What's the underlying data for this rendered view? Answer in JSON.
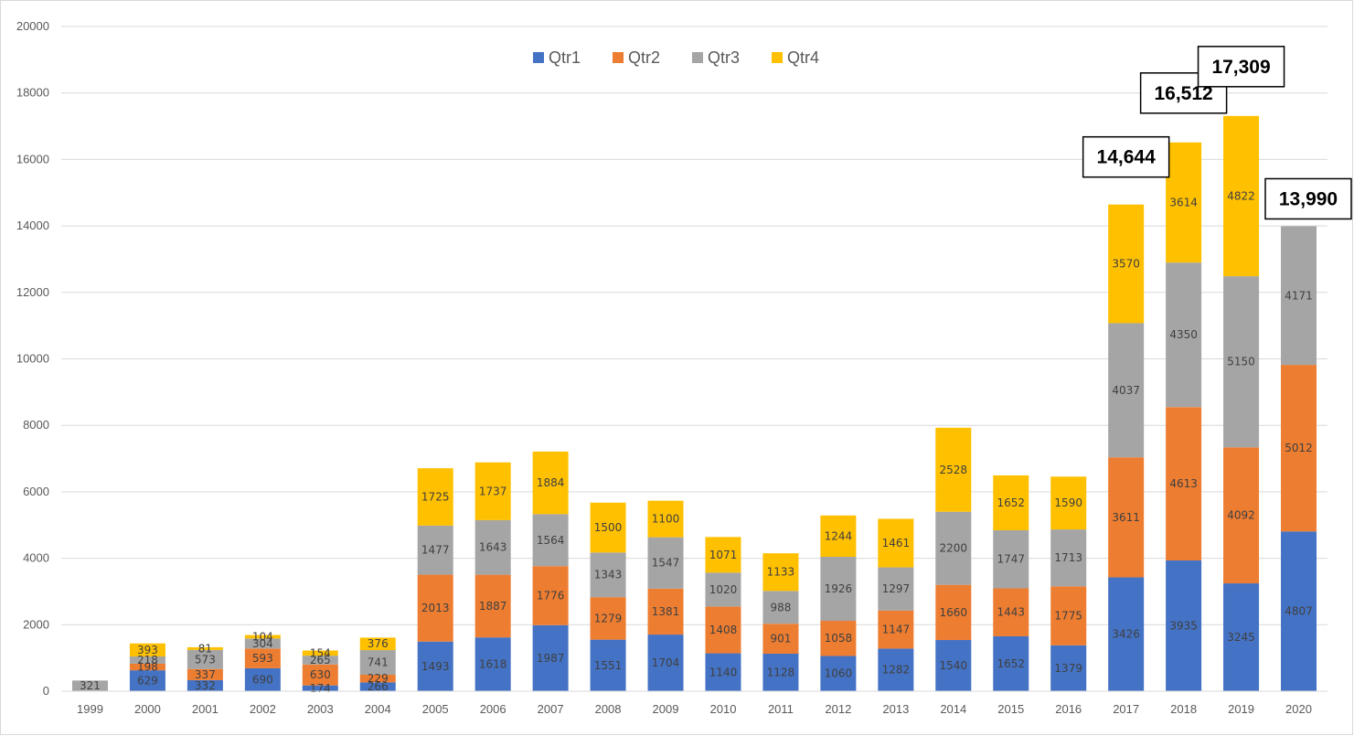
{
  "chart_data": {
    "type": "bar",
    "stacked": true,
    "title": "",
    "xlabel": "",
    "ylabel": "",
    "ylim": [
      0,
      20000
    ],
    "y_ticks": [
      "0",
      "2000",
      "4000",
      "6000",
      "8000",
      "10000",
      "12000",
      "14000",
      "16000",
      "18000",
      "20000"
    ],
    "grid": "horizontal",
    "legend_position": "top-center",
    "categories": [
      "1999",
      "2000",
      "2001",
      "2002",
      "2003",
      "2004",
      "2005",
      "2006",
      "2007",
      "2008",
      "2009",
      "2010",
      "2011",
      "2012",
      "2013",
      "2014",
      "2015",
      "2016",
      "2017",
      "2018",
      "2019",
      "2020"
    ],
    "series": [
      {
        "name": "Qtr1",
        "color": "#4472C4",
        "values": [
          0,
          629,
          332,
          690,
          174,
          266,
          1493,
          1618,
          1987,
          1551,
          1704,
          1140,
          1128,
          1060,
          1282,
          1540,
          1652,
          1379,
          3426,
          3935,
          3245,
          4807
        ]
      },
      {
        "name": "Qtr2",
        "color": "#ED7D31",
        "values": [
          0,
          198,
          337,
          593,
          630,
          229,
          2013,
          1887,
          1776,
          1279,
          1381,
          1408,
          901,
          1058,
          1147,
          1660,
          1443,
          1775,
          3611,
          4613,
          4092,
          5012
        ]
      },
      {
        "name": "Qtr3",
        "color": "#A5A5A5",
        "values": [
          321,
          218,
          573,
          304,
          265,
          741,
          1477,
          1643,
          1564,
          1343,
          1547,
          1020,
          988,
          1926,
          1297,
          2200,
          1747,
          1713,
          4037,
          4350,
          5150,
          4171
        ]
      },
      {
        "name": "Qtr4",
        "color": "#FFC000",
        "values": [
          0,
          393,
          81,
          104,
          154,
          376,
          1725,
          1737,
          1884,
          1500,
          1100,
          1071,
          1133,
          1244,
          1461,
          2528,
          1652,
          1590,
          3570,
          3614,
          4822,
          0
        ]
      }
    ],
    "annotations": [
      {
        "category": "2017",
        "text": "14,644"
      },
      {
        "category": "2018",
        "text": "16,512"
      },
      {
        "category": "2019",
        "text": "17,309"
      },
      {
        "category": "2020",
        "text": "13,990"
      }
    ]
  }
}
